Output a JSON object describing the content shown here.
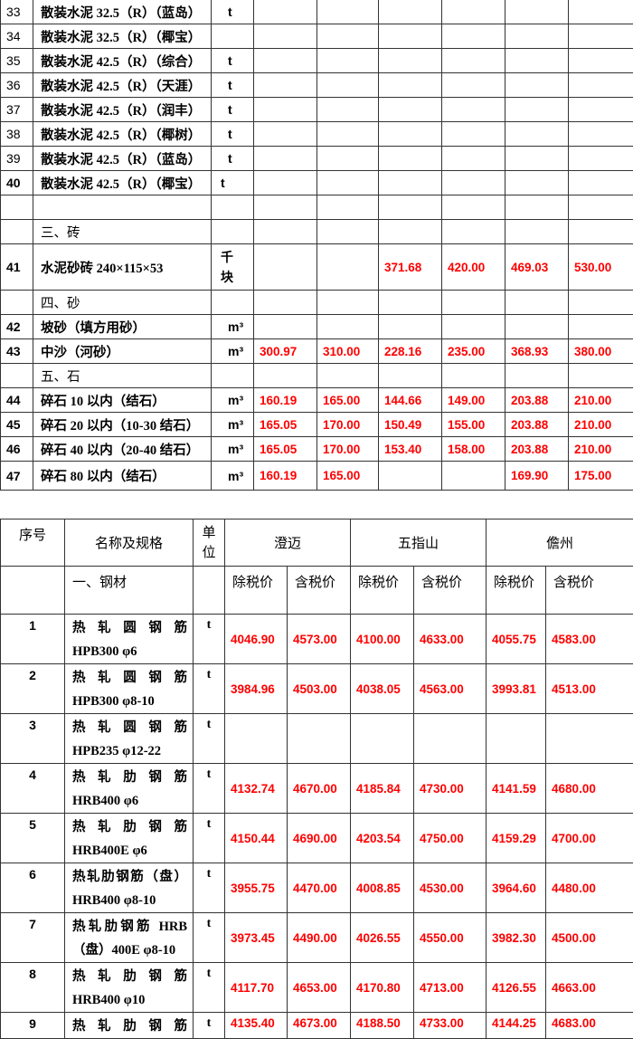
{
  "top_table": {
    "rows": [
      {
        "no": "33",
        "name": "散装水泥 32.5（R）（蓝岛）",
        "unit": "t",
        "values": [
          "",
          "",
          "",
          "",
          "",
          ""
        ]
      },
      {
        "no": "34",
        "name": "散装水泥 32.5（R）（椰宝）",
        "unit": "",
        "values": [
          "",
          "",
          "",
          "",
          "",
          ""
        ]
      },
      {
        "no": "35",
        "name": "散装水泥 42.5（R）（综合）",
        "unit": "t",
        "values": [
          "",
          "",
          "",
          "",
          "",
          ""
        ]
      },
      {
        "no": "36",
        "name": "散装水泥 42.5（R）（天涯）",
        "unit": "t",
        "values": [
          "",
          "",
          "",
          "",
          "",
          ""
        ]
      },
      {
        "no": "37",
        "name": "散装水泥 42.5（R）（润丰）",
        "unit": "t",
        "values": [
          "",
          "",
          "",
          "",
          "",
          ""
        ]
      },
      {
        "no": "38",
        "name": "散装水泥 42.5（R）（椰树）",
        "unit": "t",
        "values": [
          "",
          "",
          "",
          "",
          "",
          ""
        ]
      },
      {
        "no": "39",
        "name": "散装水泥 42.5（R）（蓝岛）",
        "unit": "t",
        "values": [
          "",
          "",
          "",
          "",
          "",
          ""
        ]
      },
      {
        "no": "40",
        "name": "散装水泥 42.5（R）（椰宝）",
        "unit": "t",
        "values": [
          "",
          "",
          "",
          "",
          "",
          ""
        ]
      },
      {
        "no": "",
        "name": "",
        "unit": "",
        "values": [
          "",
          "",
          "",
          "",
          "",
          ""
        ]
      },
      {
        "no": "",
        "name": "三、砖",
        "unit": "",
        "values": [
          "",
          "",
          "",
          "",
          "",
          ""
        ],
        "section": true
      },
      {
        "no": "41",
        "name": "水泥砂砖 240×115×53",
        "unit": "千块",
        "values": [
          "",
          "",
          "371.68",
          "420.00",
          "469.03",
          "530.00"
        ]
      },
      {
        "no": "",
        "name": "四、砂",
        "unit": "",
        "values": [
          "",
          "",
          "",
          "",
          "",
          ""
        ],
        "section": true
      },
      {
        "no": "42",
        "name": "坡砂（填方用砂）",
        "unit": "m³",
        "values": [
          "",
          "",
          "",
          "",
          "",
          ""
        ]
      },
      {
        "no": "43",
        "name": "中沙（河砂）",
        "unit": "m³",
        "values": [
          "300.97",
          "310.00",
          "228.16",
          "235.00",
          "368.93",
          "380.00"
        ]
      },
      {
        "no": "",
        "name": "五、石",
        "unit": "",
        "values": [
          "",
          "",
          "",
          "",
          "",
          ""
        ],
        "section": true
      },
      {
        "no": "44",
        "name": "碎石 10 以内（结石）",
        "unit": "m³",
        "values": [
          "160.19",
          "165.00",
          "144.66",
          "149.00",
          "203.88",
          "210.00"
        ]
      },
      {
        "no": "45",
        "name": "碎石 20 以内（10-30 结石）",
        "unit": "m³",
        "values": [
          "165.05",
          "170.00",
          "150.49",
          "155.00",
          "203.88",
          "210.00"
        ]
      },
      {
        "no": "46",
        "name": "碎石 40 以内（20-40 结石）",
        "unit": "m³",
        "values": [
          "165.05",
          "170.00",
          "153.40",
          "158.00",
          "203.88",
          "210.00"
        ]
      },
      {
        "no": "47",
        "name": "碎石 80 以内（结石）",
        "unit": "m³",
        "values": [
          "160.19",
          "165.00",
          "",
          "",
          "169.90",
          "175.00"
        ]
      }
    ]
  },
  "bottom_table": {
    "header": {
      "no": "序号",
      "name": "名称及规格",
      "unit_lines": [
        "单",
        "位"
      ],
      "regions": [
        "澄迈",
        "五指山",
        "儋州"
      ],
      "section": "一、钢材",
      "price_labels": [
        "除税价",
        "含税价",
        "除税价",
        "含税价",
        "除税价",
        "含税价"
      ]
    },
    "rows": [
      {
        "no": "1",
        "name_lines": [
          "热轧圆钢筋",
          "HPB300 φ6"
        ],
        "unit": "t",
        "values": [
          "4046.90",
          "4573.00",
          "4100.00",
          "4633.00",
          "4055.75",
          "4583.00"
        ]
      },
      {
        "no": "2",
        "name_lines": [
          "热轧圆钢筋",
          "HPB300 φ8-10"
        ],
        "unit": "t",
        "values": [
          "3984.96",
          "4503.00",
          "4038.05",
          "4563.00",
          "3993.81",
          "4513.00"
        ]
      },
      {
        "no": "3",
        "name_lines": [
          "热轧圆钢筋",
          "HPB235 φ12-22"
        ],
        "unit": "t",
        "values": [
          "",
          "",
          "",
          "",
          "",
          ""
        ]
      },
      {
        "no": "4",
        "name_lines": [
          "热轧肋钢筋",
          "HRB400 φ6"
        ],
        "unit": "t",
        "values": [
          "4132.74",
          "4670.00",
          "4185.84",
          "4730.00",
          "4141.59",
          "4680.00"
        ]
      },
      {
        "no": "5",
        "name_lines": [
          "热轧肋钢筋",
          "HRB400E φ6"
        ],
        "unit": "t",
        "values": [
          "4150.44",
          "4690.00",
          "4203.54",
          "4750.00",
          "4159.29",
          "4700.00"
        ]
      },
      {
        "no": "6",
        "name_lines": [
          "热轧肋钢筋（盘）",
          "HRB400 φ8-10"
        ],
        "unit": "t",
        "values": [
          "3955.75",
          "4470.00",
          "4008.85",
          "4530.00",
          "3964.60",
          "4480.00"
        ]
      },
      {
        "no": "7",
        "name_lines": [
          "热轧肋钢筋 HRB",
          "（盘）400E φ8-10"
        ],
        "unit": "t",
        "values": [
          "3973.45",
          "4490.00",
          "4026.55",
          "4550.00",
          "3982.30",
          "4500.00"
        ]
      },
      {
        "no": "8",
        "name_lines": [
          "热轧肋钢筋",
          "HRB400 φ10"
        ],
        "unit": "t",
        "values": [
          "4117.70",
          "4653.00",
          "4170.80",
          "4713.00",
          "4126.55",
          "4663.00"
        ]
      },
      {
        "no": "9",
        "name_lines": [
          "热轧肋钢筋"
        ],
        "unit": "t",
        "values": [
          "4135.40",
          "4673.00",
          "4188.50",
          "4733.00",
          "4144.25",
          "4683.00"
        ]
      }
    ]
  },
  "colors": {
    "price": "#ff0000",
    "border": "#333333"
  }
}
